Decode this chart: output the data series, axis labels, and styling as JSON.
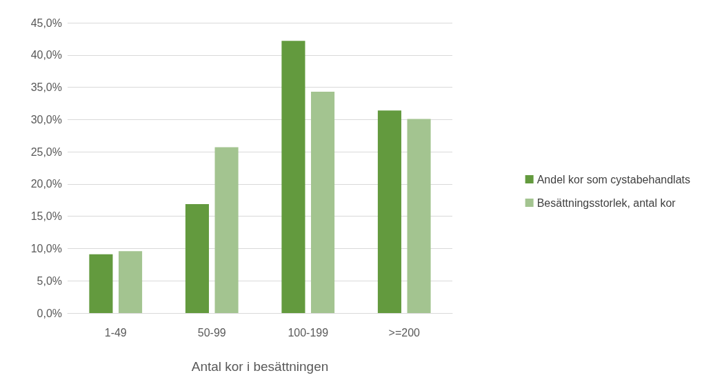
{
  "chart_data": {
    "type": "bar",
    "xlabel": "Antal kor i besättningen",
    "categories": [
      "1-49",
      "50-99",
      "100-199",
      ">=200"
    ],
    "series": [
      {
        "name": "Andel kor som cystabehandlats",
        "color": "#639a3e",
        "values": [
          9.1,
          16.9,
          42.2,
          31.4
        ]
      },
      {
        "name": "Besättningsstorlek, antal kor",
        "color": "#a3c490",
        "values": [
          9.6,
          25.7,
          34.3,
          30.1
        ]
      }
    ],
    "ylim": [
      0,
      45
    ],
    "yticks": [
      {
        "value": 0,
        "label": "0,0%"
      },
      {
        "value": 5,
        "label": "5,0%"
      },
      {
        "value": 10,
        "label": "10,0%"
      },
      {
        "value": 15,
        "label": "15,0%"
      },
      {
        "value": 20,
        "label": "20,0%"
      },
      {
        "value": 25,
        "label": "25,0%"
      },
      {
        "value": 30,
        "label": "30,0%"
      },
      {
        "value": 35,
        "label": "35,0%"
      },
      {
        "value": 40,
        "label": "40,0%"
      },
      {
        "value": 45,
        "label": "45,0%"
      }
    ],
    "grid": "y",
    "legend": "right"
  }
}
